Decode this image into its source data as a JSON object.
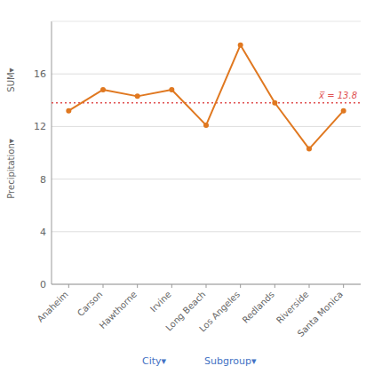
{
  "chart_data": {
    "type": "line",
    "categories": [
      "Anaheim",
      "Carson",
      "Hawthorne",
      "Irvine",
      "Long Beach",
      "Los Angeles",
      "Redlands",
      "Riverside",
      "Santa Monica"
    ],
    "values": [
      13.2,
      14.8,
      14.3,
      14.8,
      12.1,
      18.2,
      13.8,
      10.3,
      13.2
    ],
    "color": "#E07820",
    "marker": "circle",
    "mean": {
      "value": 13.8,
      "label": "x̅ = 13.8",
      "color": "#E05050"
    },
    "ylabel": [
      "SUM▾",
      "Precipitation▾"
    ],
    "xlabel": [
      "City▾",
      "Subgroup▾"
    ],
    "ylim": [
      0,
      20
    ],
    "yticks": [
      0,
      4,
      8,
      12,
      16
    ],
    "grid": true
  }
}
